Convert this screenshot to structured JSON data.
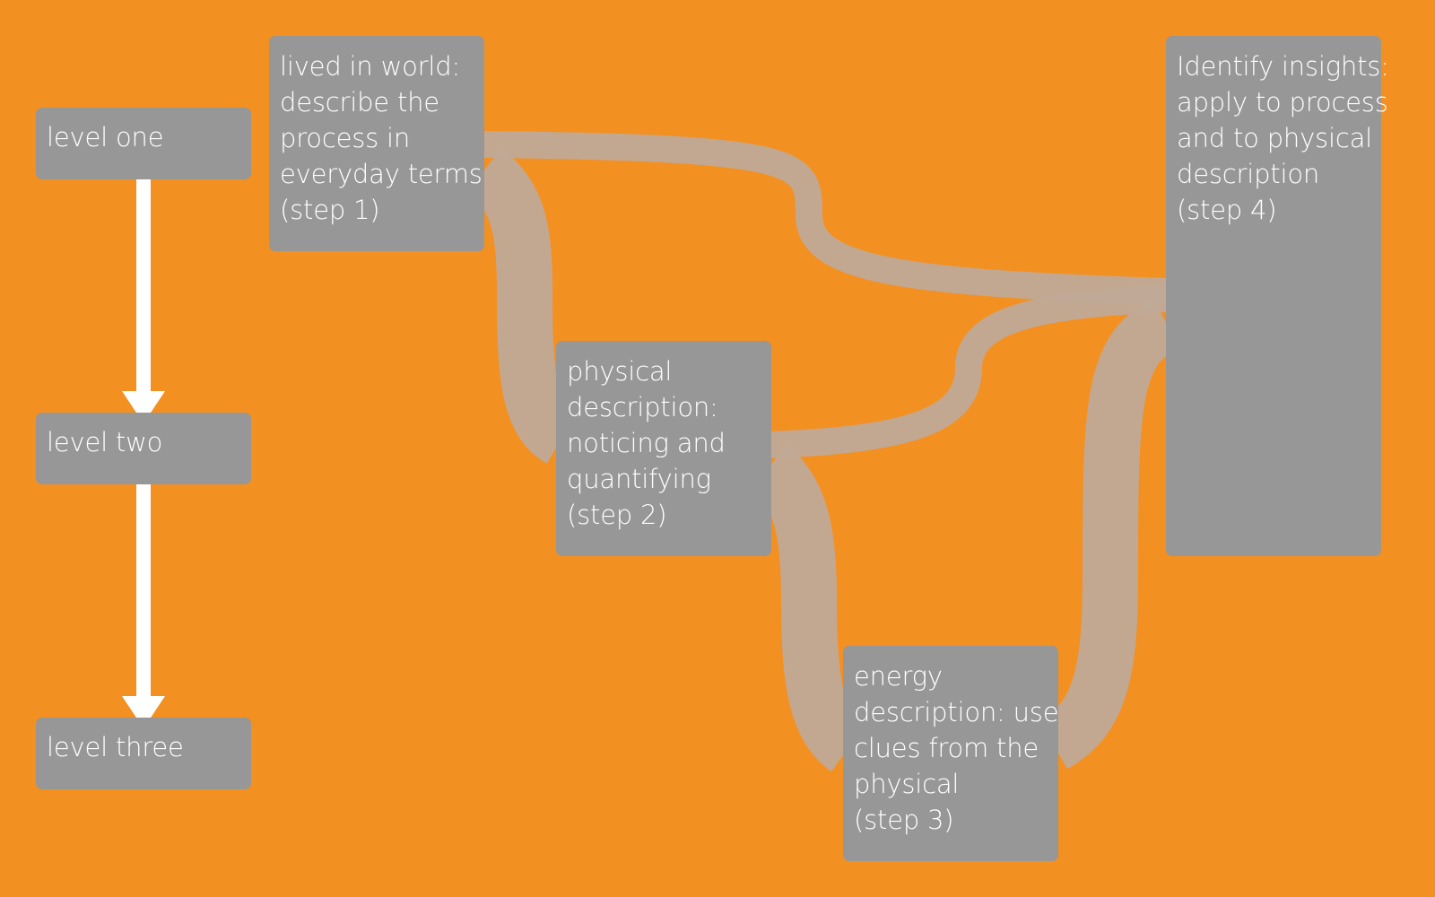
{
  "colors": {
    "background": "#f39022",
    "box": "#979797",
    "link": "#c0aa98",
    "arrow": "#ffffff",
    "text": "#ffffff"
  },
  "levels": [
    {
      "label": "level one"
    },
    {
      "label": "level two"
    },
    {
      "label": "level three"
    }
  ],
  "steps": {
    "step1": {
      "lines": [
        "lived in world:",
        "describe the",
        "process in",
        "everyday terms",
        "(step 1)"
      ]
    },
    "step2": {
      "lines": [
        "physical",
        "description:",
        "noticing and",
        "quantifying",
        "(step 2)"
      ]
    },
    "step3": {
      "lines": [
        "energy",
        "description: use",
        "clues from the",
        "physical",
        "(step 3)"
      ]
    },
    "step4": {
      "lines": [
        "Identify insights:",
        "apply to process",
        "and to physical",
        "description",
        "(step 4)"
      ]
    }
  },
  "links": [
    {
      "from": "step1",
      "to": "step4",
      "style": "thin"
    },
    {
      "from": "step1",
      "to": "step2",
      "style": "thick"
    },
    {
      "from": "step2",
      "to": "step4",
      "style": "thin"
    },
    {
      "from": "step2",
      "to": "step3",
      "style": "thick"
    },
    {
      "from": "step3",
      "to": "step4",
      "style": "thick"
    }
  ]
}
